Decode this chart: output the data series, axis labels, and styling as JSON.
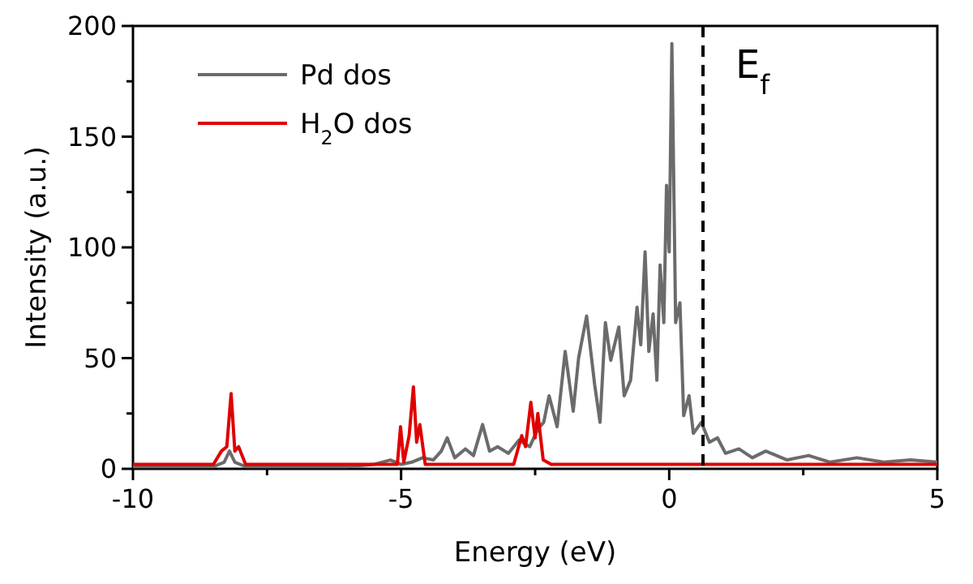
{
  "chart_data": {
    "type": "line",
    "xlabel": "Energy (eV)",
    "ylabel": "Intensity (a.u.)",
    "xlim": [
      -10,
      5
    ],
    "xticks": [
      -10,
      {
        "value": -7.5,
        "label": null
      },
      -5,
      {
        "value": -2.5,
        "label": null
      },
      0,
      {
        "value": 2.5,
        "label": null
      },
      5
    ],
    "ylim": [
      0,
      200
    ],
    "yticks": [
      0,
      {
        "value": 25,
        "label": null
      },
      50,
      {
        "value": 75,
        "label": null
      },
      100,
      {
        "value": 125,
        "label": null
      },
      150,
      {
        "value": 175,
        "label": null
      },
      200
    ],
    "legend": "top left",
    "grid": false,
    "line_style": "solid",
    "ref_lines": [
      {
        "axis": "x",
        "value": 0.63,
        "label": "E$_{f}$",
        "color": "#000000",
        "line_style": "dashed"
      }
    ],
    "series": [
      {
        "name": "Pd dos",
        "color": "#6b6b6b",
        "x": [
          -10,
          -9,
          -8.5,
          -8.3,
          -8.2,
          -8.1,
          -7.9,
          -7,
          -6,
          -5.5,
          -5.2,
          -5,
          -4.8,
          -4.6,
          -4.4,
          -4.25,
          -4.14,
          -4.0,
          -3.8,
          -3.65,
          -3.48,
          -3.35,
          -3.2,
          -3.0,
          -2.8,
          -2.6,
          -2.45,
          -2.34,
          -2.24,
          -2.09,
          -1.94,
          -1.79,
          -1.69,
          -1.54,
          -1.39,
          -1.29,
          -1.19,
          -1.09,
          -0.94,
          -0.84,
          -0.72,
          -0.6,
          -0.53,
          -0.45,
          -0.38,
          -0.3,
          -0.23,
          -0.17,
          -0.1,
          -0.05,
          0.0,
          0.05,
          0.12,
          0.2,
          0.27,
          0.37,
          0.45,
          0.6,
          0.75,
          0.9,
          1.05,
          1.3,
          1.55,
          1.8,
          2.2,
          2.6,
          3.0,
          3.5,
          4.0,
          4.5,
          5
        ],
        "values": [
          1,
          1,
          1,
          3,
          8,
          3,
          1,
          1,
          1,
          2,
          4,
          2,
          3,
          5,
          4,
          8,
          14,
          5,
          9,
          6,
          20,
          8,
          10,
          7,
          13,
          10,
          18,
          21,
          33,
          19,
          53,
          26,
          50,
          69,
          38,
          21,
          66,
          49,
          64,
          33,
          40,
          73,
          56,
          98,
          53,
          70,
          40,
          92,
          66,
          128,
          98,
          192,
          66,
          75,
          24,
          33,
          16,
          21,
          12,
          14,
          7,
          9,
          5,
          8,
          4,
          6,
          3,
          5,
          3,
          4,
          3
        ]
      },
      {
        "name": "H$_{2}$O dos",
        "color": "#e00000",
        "x": [
          -10,
          -8.5,
          -8.35,
          -8.25,
          -8.17,
          -8.1,
          -8.03,
          -7.9,
          -5.2,
          -5.07,
          -5.01,
          -4.95,
          -4.85,
          -4.77,
          -4.71,
          -4.65,
          -4.55,
          -2.9,
          -2.75,
          -2.68,
          -2.58,
          -2.5,
          -2.45,
          -2.35,
          -2.2,
          0,
          5
        ],
        "values": [
          2,
          2,
          8,
          10,
          34,
          8,
          10,
          2,
          2,
          2,
          19,
          3,
          15,
          37,
          12,
          20,
          2,
          2,
          15,
          10,
          30,
          14,
          25,
          4,
          2,
          2,
          2
        ]
      }
    ]
  }
}
